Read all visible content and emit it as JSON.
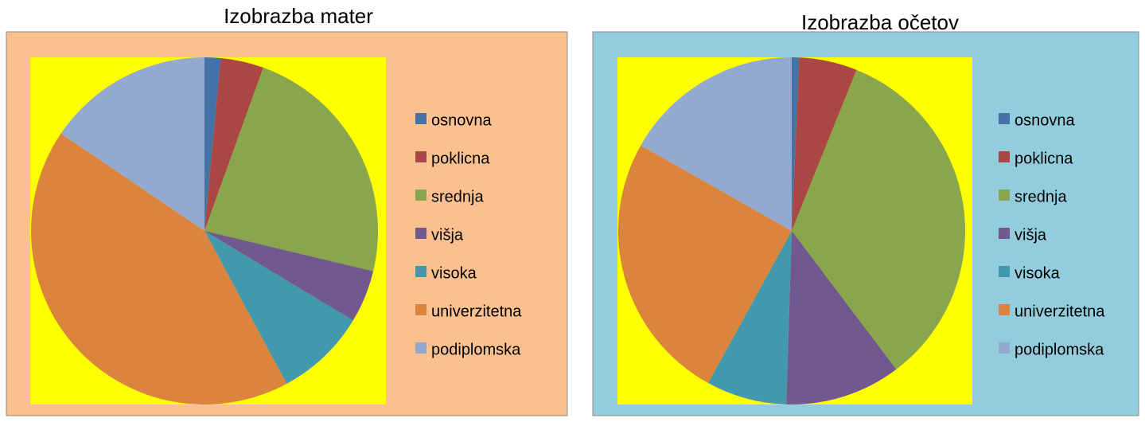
{
  "chart_data": [
    {
      "type": "pie",
      "title": "Izobrazba mater",
      "categories": [
        "osnovna",
        "poklicna",
        "srednja",
        "višja",
        "visoka",
        "univerzitetna",
        "podiplomska"
      ],
      "values": [
        1.5,
        4,
        23.2,
        4.9,
        8.5,
        42.3,
        15.5
      ],
      "colors": [
        "#4572a7",
        "#aa4643",
        "#89a54e",
        "#71588f",
        "#4198af",
        "#db843d",
        "#93a9cf"
      ],
      "background": "#fac090",
      "plot_background": "#ffff00",
      "legend": "right"
    },
    {
      "type": "pie",
      "title": "Izobrazba očetov",
      "categories": [
        "osnovna",
        "poklicna",
        "srednja",
        "višja",
        "visoka",
        "univerzitetna",
        "podiplomska"
      ],
      "values": [
        0.7,
        5.4,
        33.6,
        10.8,
        7.5,
        25.2,
        16.8
      ],
      "colors": [
        "#4572a7",
        "#aa4643",
        "#89a54e",
        "#71588f",
        "#4198af",
        "#db843d",
        "#93a9cf"
      ],
      "background": "#93cddd",
      "plot_background": "#ffff00",
      "legend": "right"
    }
  ]
}
